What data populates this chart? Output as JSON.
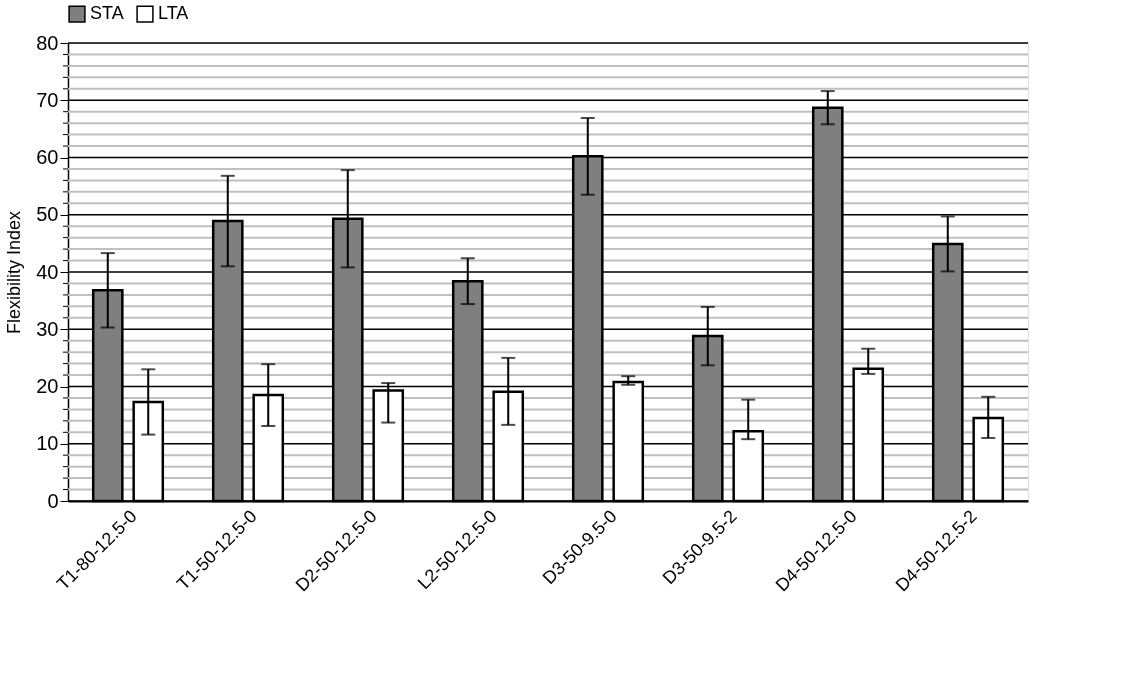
{
  "chart_data": {
    "type": "bar",
    "ylabel": "Flexibility Index",
    "categories": [
      "T1-80-12.5-0",
      "T1-50-12.5-0",
      "D2-50-12.5-0",
      "L2-50-12.5-0",
      "D3-50-9.5-0",
      "D3-50-9.5-2",
      "D4-50-12.5-0",
      "D4-50-12.5-2"
    ],
    "series": [
      {
        "name": "STA",
        "color": "#7f7f7f",
        "values": [
          36.8,
          48.9,
          49.3,
          38.4,
          60.2,
          28.8,
          68.7,
          44.9
        ],
        "errors": [
          6.5,
          7.9,
          8.5,
          4,
          6.7,
          5.1,
          2.9,
          4.8
        ]
      },
      {
        "name": "LTA",
        "color": "#ffffff",
        "values": [
          17.3,
          18.5,
          19.3,
          19.1,
          20.8,
          12.2,
          23.1,
          14.5
        ],
        "errors": [
          [
            11.6,
            23
          ],
          [
            13.1,
            23.9
          ],
          [
            13.7,
            20.6
          ],
          [
            13.3,
            25
          ],
          [
            20.3,
            21.8
          ],
          [
            10.8,
            17.7
          ],
          [
            22.2,
            26.6
          ],
          [
            11,
            18.2
          ]
        ]
      }
    ],
    "ylim": [
      0,
      80
    ],
    "yticks": [
      0,
      {
        "value": 2,
        "label": null
      },
      {
        "value": 4,
        "label": null
      },
      {
        "value": 6,
        "label": null
      },
      {
        "value": 8,
        "label": null
      },
      10,
      {
        "value": 12,
        "label": null
      },
      {
        "value": 14,
        "label": null
      },
      {
        "value": 16,
        "label": null
      },
      {
        "value": 18,
        "label": null
      },
      20,
      {
        "value": 22,
        "label": null
      },
      {
        "value": 24,
        "label": null
      },
      {
        "value": 26,
        "label": null
      },
      {
        "value": 28,
        "label": null
      },
      30,
      {
        "value": 32,
        "label": null
      },
      {
        "value": 34,
        "label": null
      },
      {
        "value": 36,
        "label": null
      },
      {
        "value": 38,
        "label": null
      },
      40,
      {
        "value": 42,
        "label": null
      },
      {
        "value": 44,
        "label": null
      },
      {
        "value": 46,
        "label": null
      },
      {
        "value": 48,
        "label": null
      },
      50,
      {
        "value": 52,
        "label": null
      },
      {
        "value": 54,
        "label": null
      },
      {
        "value": 56,
        "label": null
      },
      {
        "value": 58,
        "label": null
      },
      60,
      {
        "value": 62,
        "label": null
      },
      {
        "value": 64,
        "label": null
      },
      {
        "value": 66,
        "label": null
      },
      {
        "value": 68,
        "label": null
      },
      70,
      {
        "value": 72,
        "label": null
      },
      {
        "value": 74,
        "label": null
      },
      {
        "value": 76,
        "label": null
      },
      {
        "value": 78,
        "label": null
      },
      80
    ],
    "grid": true,
    "legend": "top"
  }
}
